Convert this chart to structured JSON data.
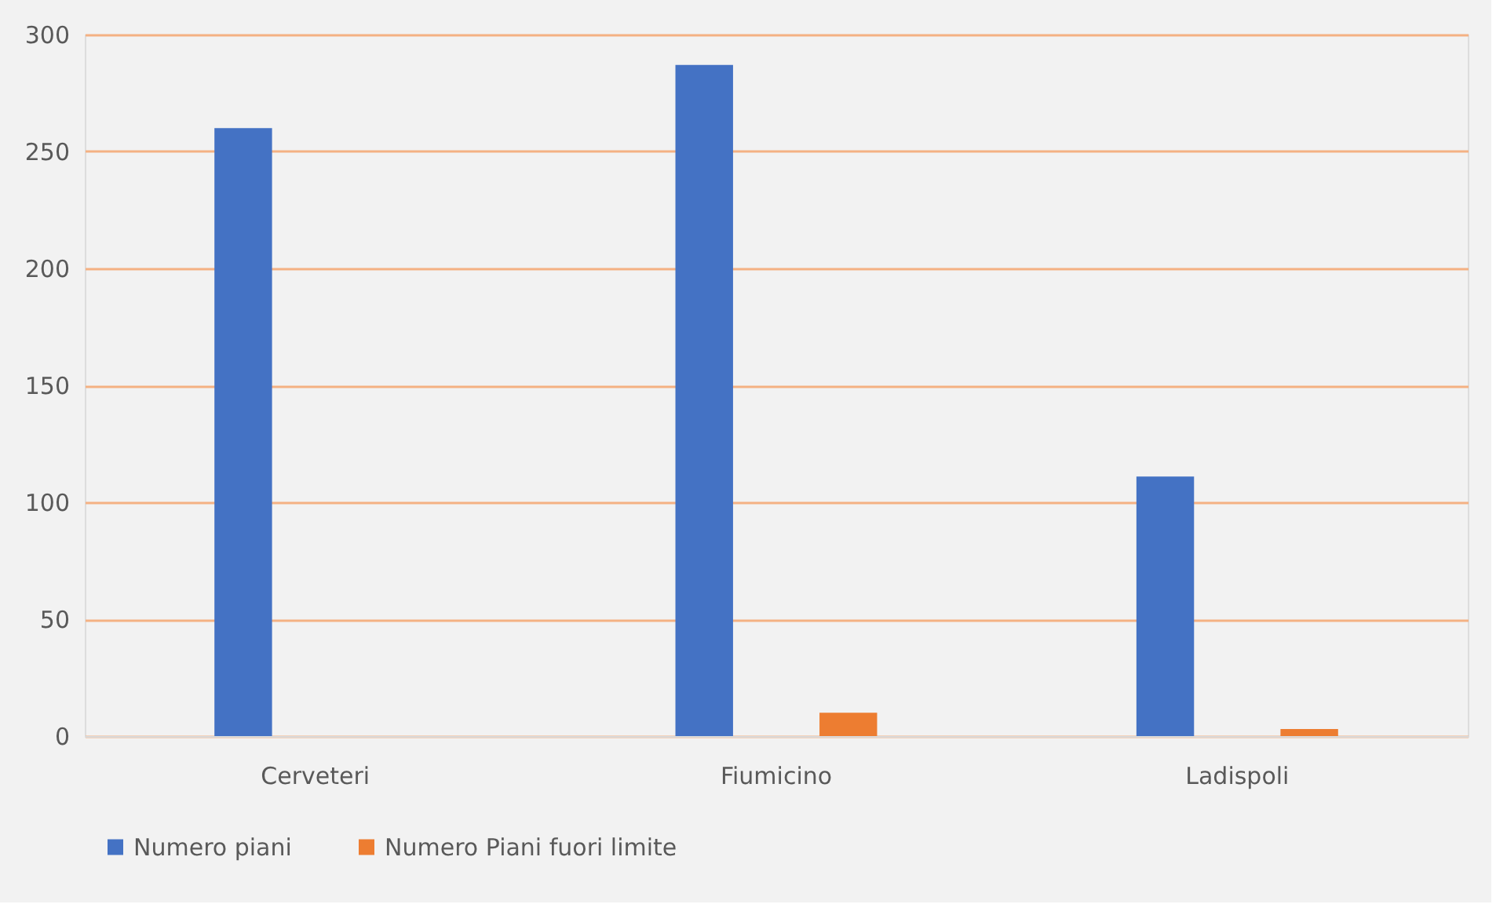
{
  "chart_data": {
    "type": "bar",
    "categories": [
      "Cerveteri",
      "Fiumicino",
      "Ladispoli"
    ],
    "series": [
      {
        "name": "Numero piani",
        "color": "#4472c4",
        "values": [
          260,
          287,
          111
        ]
      },
      {
        "name": "Numero Piani fuori limite",
        "color": "#ed7d31",
        "values": [
          null,
          10,
          3
        ]
      }
    ],
    "ylim": [
      0,
      300
    ],
    "yticks": [
      0,
      50,
      100,
      150,
      200,
      250,
      300
    ],
    "grid": "y",
    "legend": "bottom"
  }
}
